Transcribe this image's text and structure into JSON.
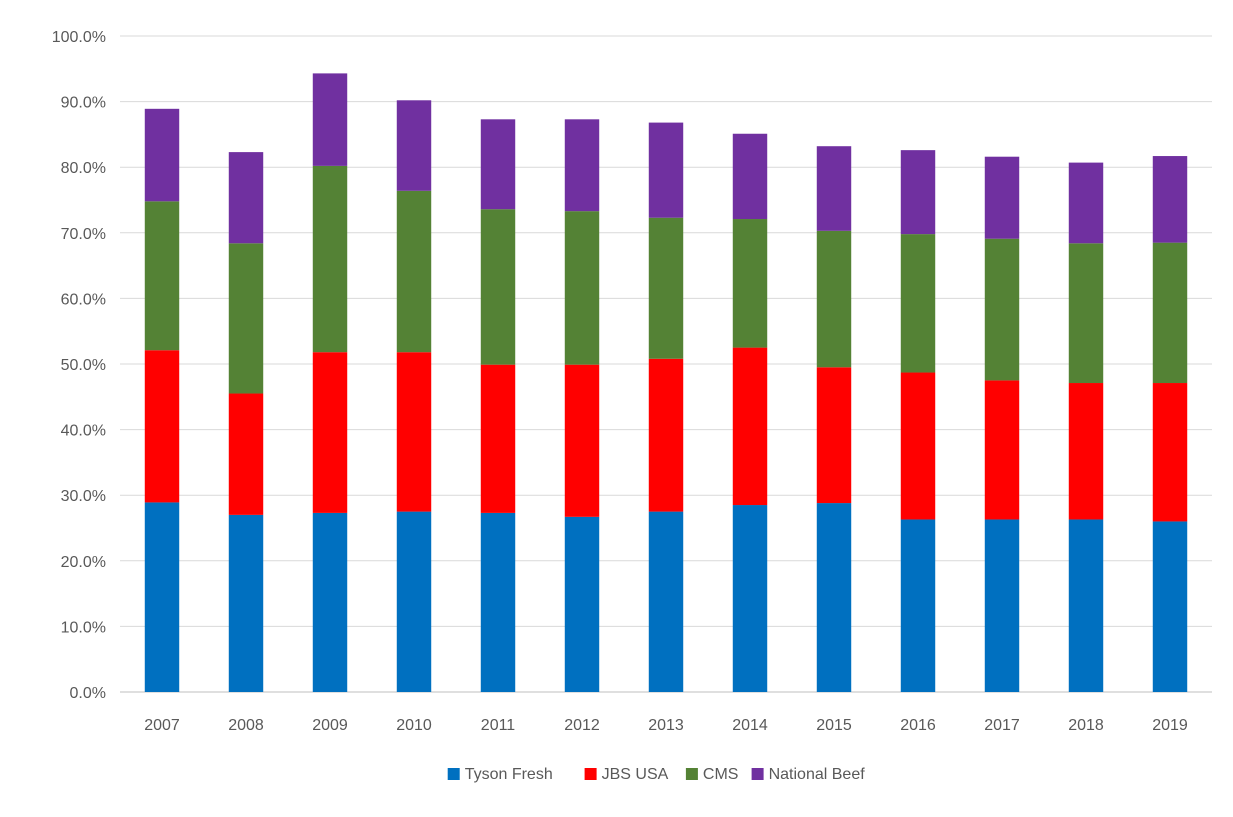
{
  "chart_data": {
    "type": "bar",
    "stacked": true,
    "categories": [
      "2007",
      "2008",
      "2009",
      "2010",
      "2011",
      "2012",
      "2013",
      "2014",
      "2015",
      "2016",
      "2017",
      "2018",
      "2019"
    ],
    "series": [
      {
        "name": "Tyson Fresh",
        "color": "#0070C0",
        "values": [
          28.9,
          27.0,
          27.3,
          27.5,
          27.3,
          26.7,
          27.5,
          28.5,
          28.8,
          26.3,
          26.3,
          26.3,
          26.0
        ]
      },
      {
        "name": "JBS USA",
        "color": "#FF0000",
        "values": [
          23.2,
          18.5,
          24.5,
          24.3,
          22.6,
          23.2,
          23.3,
          24.0,
          20.7,
          22.4,
          21.2,
          20.8,
          21.1
        ]
      },
      {
        "name": "CMS",
        "color": "#548235",
        "values": [
          22.7,
          22.9,
          28.4,
          24.6,
          23.7,
          23.4,
          21.5,
          19.6,
          20.8,
          21.1,
          21.6,
          21.3,
          21.4
        ]
      },
      {
        "name": "National Beef",
        "color": "#7030A0",
        "values": [
          14.1,
          13.9,
          14.1,
          13.8,
          13.7,
          14.0,
          14.5,
          13.0,
          12.9,
          12.8,
          12.5,
          12.3,
          13.2
        ]
      }
    ],
    "yticks": [
      "0.0%",
      "10.0%",
      "20.0%",
      "30.0%",
      "40.0%",
      "50.0%",
      "60.0%",
      "70.0%",
      "80.0%",
      "90.0%",
      "100.0%"
    ],
    "ylim": [
      0,
      100
    ],
    "grid": true,
    "legend_position": "bottom"
  }
}
